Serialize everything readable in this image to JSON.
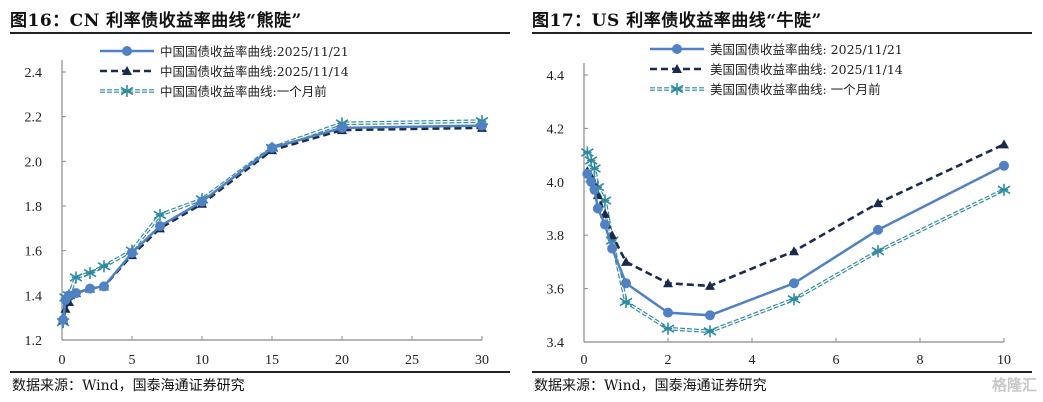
{
  "left": {
    "title_prefix": "图16：",
    "title_main": "CN 利率债收益率曲线“熊陡”",
    "source": "数据来源：Wind，国泰海通证券研究"
  },
  "right": {
    "title_prefix": "图17：",
    "title_main": "US 利率债收益率曲线“牛陡”",
    "source": "数据来源：Wind，国泰海通证券研究",
    "watermark": "格隆汇"
  },
  "colors": {
    "series_current": "#4f81c3",
    "series_week": "#1a2c4e",
    "series_month": "#2e8aa0",
    "axis": "#8a8a8a"
  },
  "chart_data": [
    {
      "type": "line",
      "title": "CN 利率债收益率曲线“熊陡”",
      "xlabel": "",
      "ylabel": "",
      "xlim": [
        0,
        30
      ],
      "ylim": [
        1.2,
        2.4
      ],
      "xticks": [
        "0",
        "5",
        "10",
        "15",
        "20",
        "25",
        "30"
      ],
      "yticks": [
        "1.2",
        "1.4",
        "1.6",
        "1.8",
        "2.0",
        "2.2",
        "2.4"
      ],
      "grid": false,
      "legend_position": "top-center",
      "x": [
        0.08,
        0.25,
        0.5,
        1,
        2,
        3,
        5,
        7,
        10,
        15,
        20,
        30
      ],
      "series": [
        {
          "name": "中国国债收益率曲线:2025/11/21",
          "style": "solid-circle",
          "values": [
            1.29,
            1.38,
            1.4,
            1.41,
            1.43,
            1.44,
            1.59,
            1.71,
            1.82,
            2.06,
            2.15,
            2.16
          ]
        },
        {
          "name": "中国国债收益率曲线:2025/11/14",
          "style": "dashed-triangle",
          "values": [
            1.29,
            1.34,
            1.37,
            1.41,
            1.43,
            1.44,
            1.58,
            1.7,
            1.81,
            2.05,
            2.14,
            2.15
          ]
        },
        {
          "name": "中国国债收益率曲线:一个月前",
          "style": "double-star",
          "values": [
            1.28,
            1.39,
            1.4,
            1.48,
            1.5,
            1.53,
            1.6,
            1.76,
            1.83,
            2.06,
            2.17,
            2.18
          ]
        }
      ]
    },
    {
      "type": "line",
      "title": "US 利率债收益率曲线“牛陡”",
      "xlabel": "",
      "ylabel": "",
      "xlim": [
        0,
        10
      ],
      "ylim": [
        3.4,
        4.4
      ],
      "xticks": [
        "0",
        "2",
        "4",
        "6",
        "8",
        "10"
      ],
      "yticks": [
        "3.4",
        "3.6",
        "3.8",
        "4.0",
        "4.2",
        "4.4"
      ],
      "grid": false,
      "legend_position": "top-center",
      "x": [
        0.08,
        0.17,
        0.25,
        0.33,
        0.5,
        0.67,
        1,
        2,
        3,
        5,
        7,
        10
      ],
      "series": [
        {
          "name": "美国国债收益率曲线: 2025/11/21",
          "style": "solid-circle",
          "values": [
            4.03,
            4.0,
            3.97,
            3.9,
            3.84,
            3.75,
            3.62,
            3.51,
            3.5,
            3.62,
            3.82,
            4.06
          ]
        },
        {
          "name": "美国国债收益率曲线: 2025/11/14",
          "style": "dashed-triangle",
          "values": [
            4.04,
            4.02,
            3.99,
            3.95,
            3.88,
            3.8,
            3.7,
            3.62,
            3.61,
            3.74,
            3.92,
            4.14
          ]
        },
        {
          "name": "美国国债收益率曲线: 一个月前",
          "style": "double-star",
          "values": [
            4.11,
            4.08,
            4.05,
            3.98,
            3.93,
            3.78,
            3.55,
            3.45,
            3.44,
            3.56,
            3.74,
            3.97
          ]
        }
      ]
    }
  ]
}
